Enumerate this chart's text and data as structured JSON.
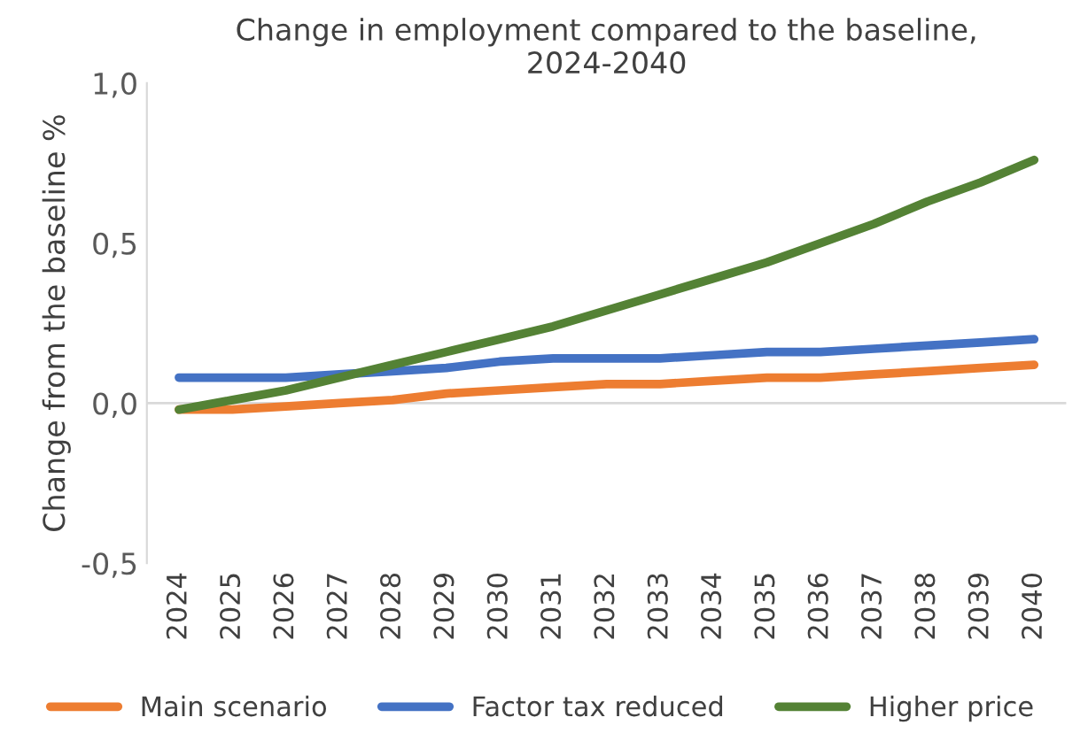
{
  "chart_data": {
    "type": "line",
    "title": "Change in employment compared to the baseline,\n2024-2040",
    "ylabel": "Change from the baseline %",
    "categories": [
      "2024",
      "2025",
      "2026",
      "2027",
      "2028",
      "2029",
      "2030",
      "2031",
      "2032",
      "2033",
      "2034",
      "2035",
      "2036",
      "2037",
      "2038",
      "2039",
      "2040"
    ],
    "series": [
      {
        "name": "Main scenario",
        "color": "#ed7d31",
        "values": [
          -0.02,
          -0.02,
          -0.01,
          0.0,
          0.01,
          0.03,
          0.04,
          0.05,
          0.06,
          0.06,
          0.07,
          0.08,
          0.08,
          0.09,
          0.1,
          0.11,
          0.12
        ]
      },
      {
        "name": "Factor tax reduced",
        "color": "#4472c4",
        "values": [
          0.08,
          0.08,
          0.08,
          0.09,
          0.1,
          0.11,
          0.13,
          0.14,
          0.14,
          0.14,
          0.15,
          0.16,
          0.16,
          0.17,
          0.18,
          0.19,
          0.2
        ]
      },
      {
        "name": "Higher price",
        "color": "#548235",
        "values": [
          -0.02,
          0.01,
          0.04,
          0.08,
          0.12,
          0.16,
          0.2,
          0.24,
          0.29,
          0.34,
          0.39,
          0.44,
          0.5,
          0.56,
          0.63,
          0.69,
          0.76
        ]
      }
    ],
    "ylim": [
      -0.5,
      1.0
    ],
    "yticks": [
      {
        "value": -0.5,
        "label": "-0,5"
      },
      {
        "value": 0,
        "label": "0,0"
      },
      {
        "value": 0.5,
        "label": "0,5"
      },
      {
        "value": 1.0,
        "label": "1,0"
      }
    ],
    "ref_lines": [
      {
        "axis": "y",
        "value": 0,
        "color": "#d9d9d9"
      }
    ],
    "grid": false,
    "legend": "bottom",
    "marker": "none",
    "line_style": "solid"
  }
}
